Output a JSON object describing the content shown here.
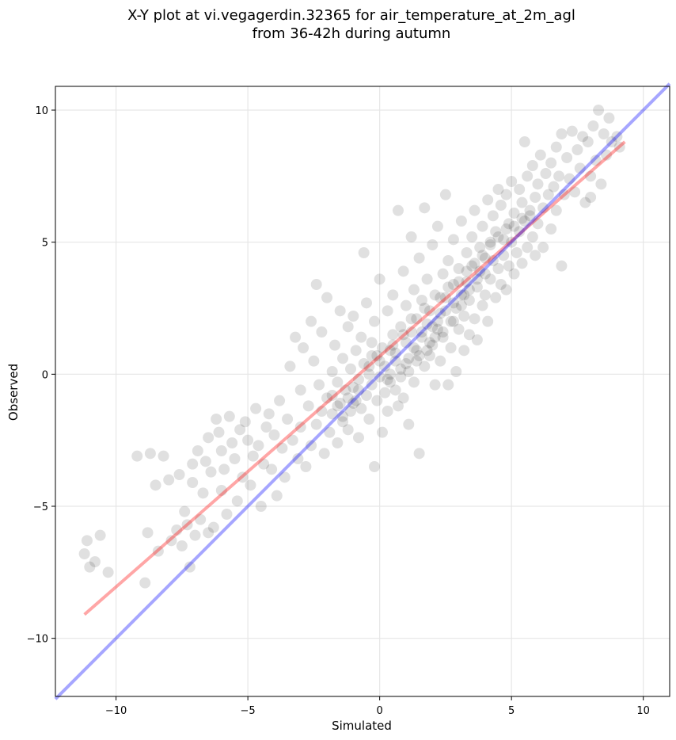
{
  "chart_data": {
    "type": "scatter",
    "title": "X-Y plot at vi.vegagerdin.32365 for air_temperature_at_2m_agl",
    "subtitle": "from 36-42h during autumn",
    "xlabel": "Simulated",
    "ylabel": "Observed",
    "xlim": [
      -12.3,
      11.0
    ],
    "ylim": [
      -12.2,
      10.9
    ],
    "xticks": [
      -10,
      -5,
      0,
      5,
      10
    ],
    "yticks": [
      -10,
      -5,
      0,
      5,
      10
    ],
    "grid": true,
    "point_color": "#000000",
    "points": [
      [
        -11.2,
        -6.8
      ],
      [
        -11.1,
        -6.3
      ],
      [
        -11.0,
        -7.3
      ],
      [
        -10.8,
        -7.1
      ],
      [
        -10.6,
        -6.1
      ],
      [
        -10.3,
        -7.5
      ],
      [
        -9.2,
        -3.1
      ],
      [
        -8.9,
        -7.9
      ],
      [
        -8.8,
        -6.0
      ],
      [
        -8.7,
        -3.0
      ],
      [
        -8.5,
        -4.2
      ],
      [
        -8.4,
        -6.7
      ],
      [
        -8.2,
        -3.1
      ],
      [
        -8.0,
        -4.0
      ],
      [
        -7.9,
        -6.3
      ],
      [
        -7.7,
        -5.9
      ],
      [
        -7.6,
        -3.8
      ],
      [
        -7.5,
        -6.5
      ],
      [
        -7.4,
        -5.2
      ],
      [
        -7.3,
        -5.7
      ],
      [
        -7.2,
        -7.3
      ],
      [
        -7.1,
        -3.4
      ],
      [
        -7.1,
        -4.1
      ],
      [
        -7.0,
        -6.1
      ],
      [
        -6.9,
        -2.9
      ],
      [
        -6.8,
        -5.5
      ],
      [
        -6.7,
        -4.5
      ],
      [
        -6.6,
        -3.3
      ],
      [
        -6.5,
        -6.0
      ],
      [
        -6.5,
        -2.4
      ],
      [
        -6.4,
        -3.7
      ],
      [
        -6.3,
        -5.8
      ],
      [
        -6.2,
        -1.7
      ],
      [
        -6.1,
        -2.2
      ],
      [
        -6.0,
        -4.4
      ],
      [
        -6.0,
        -2.9
      ],
      [
        -5.9,
        -3.6
      ],
      [
        -5.8,
        -5.3
      ],
      [
        -5.7,
        -1.6
      ],
      [
        -5.6,
        -2.6
      ],
      [
        -5.5,
        -3.2
      ],
      [
        -5.4,
        -4.8
      ],
      [
        -5.3,
        -2.1
      ],
      [
        -5.2,
        -3.9
      ],
      [
        -5.1,
        -1.8
      ],
      [
        -5.0,
        -2.5
      ],
      [
        -4.9,
        -4.2
      ],
      [
        -4.8,
        -3.1
      ],
      [
        -4.7,
        -1.3
      ],
      [
        -4.6,
        -2.7
      ],
      [
        -4.5,
        -5.0
      ],
      [
        -4.4,
        -3.4
      ],
      [
        -4.3,
        -2.0
      ],
      [
        -4.2,
        -1.5
      ],
      [
        -4.1,
        -3.6
      ],
      [
        -4.0,
        -2.3
      ],
      [
        -3.9,
        -4.6
      ],
      [
        -3.8,
        -1.0
      ],
      [
        -3.7,
        -2.8
      ],
      [
        -3.6,
        -3.9
      ],
      [
        -3.5,
        -1.7
      ],
      [
        -3.4,
        0.3
      ],
      [
        -3.3,
        -2.5
      ],
      [
        -3.2,
        1.4
      ],
      [
        -3.1,
        -3.2
      ],
      [
        -3.0,
        -0.6
      ],
      [
        -3.0,
        -2.0
      ],
      [
        -2.9,
        1.0
      ],
      [
        -2.8,
        -3.5
      ],
      [
        -2.7,
        -1.2
      ],
      [
        -2.6,
        2.0
      ],
      [
        -2.6,
        -2.7
      ],
      [
        -2.5,
        0.5
      ],
      [
        -2.4,
        3.4
      ],
      [
        -2.4,
        -1.9
      ],
      [
        -2.3,
        -0.4
      ],
      [
        -2.2,
        1.6
      ],
      [
        -2.1,
        -3.0
      ],
      [
        -2.0,
        -0.9
      ],
      [
        -2.0,
        2.9
      ],
      [
        -1.9,
        -2.2
      ],
      [
        -1.8,
        0.1
      ],
      [
        -1.8,
        -1.5
      ],
      [
        -1.7,
        1.1
      ],
      [
        -1.6,
        -0.3
      ],
      [
        -1.6,
        -2.6
      ],
      [
        -1.5,
        2.4
      ],
      [
        -1.5,
        -1.1
      ],
      [
        -1.4,
        0.6
      ],
      [
        -1.4,
        -1.8
      ],
      [
        -1.3,
        -0.6
      ],
      [
        -1.2,
        1.8
      ],
      [
        -1.2,
        -2.1
      ],
      [
        -1.1,
        0.2
      ],
      [
        -1.1,
        -1.4
      ],
      [
        -1.0,
        -0.5
      ],
      [
        -1.0,
        2.2
      ],
      [
        -0.9,
        -1.0
      ],
      [
        -0.9,
        0.9
      ],
      [
        -0.8,
        -2.4
      ],
      [
        -0.8,
        -0.2
      ],
      [
        -0.7,
        1.4
      ],
      [
        -0.7,
        -1.3
      ],
      [
        -0.6,
        4.6
      ],
      [
        -0.6,
        0.4
      ],
      [
        -0.5,
        -0.8
      ],
      [
        -0.5,
        2.7
      ],
      [
        -0.4,
        -1.7
      ],
      [
        -0.4,
        0.0
      ],
      [
        -0.3,
        1.2
      ],
      [
        -0.3,
        -0.4
      ],
      [
        -0.2,
        -3.5
      ],
      [
        -0.2,
        2.0
      ],
      [
        -0.1,
        -1.0
      ],
      [
        -0.1,
        0.7
      ],
      [
        0.0,
        -0.1
      ],
      [
        0.0,
        3.6
      ],
      [
        0.1,
        -2.2
      ],
      [
        0.1,
        1.0
      ],
      [
        0.2,
        0.3
      ],
      [
        0.2,
        -0.7
      ],
      [
        0.3,
        2.4
      ],
      [
        0.3,
        -1.4
      ],
      [
        0.4,
        0.9
      ],
      [
        0.4,
        -0.3
      ],
      [
        0.5,
        3.0
      ],
      [
        0.5,
        1.5
      ],
      [
        0.6,
        -0.6
      ],
      [
        0.6,
        0.5
      ],
      [
        0.7,
        6.2
      ],
      [
        0.7,
        -1.2
      ],
      [
        0.8,
        1.8
      ],
      [
        0.8,
        0.2
      ],
      [
        0.9,
        3.9
      ],
      [
        0.9,
        -0.9
      ],
      [
        1.0,
        1.2
      ],
      [
        1.0,
        2.6
      ],
      [
        1.1,
        0.6
      ],
      [
        1.1,
        -1.9
      ],
      [
        1.2,
        5.2
      ],
      [
        1.2,
        1.6
      ],
      [
        1.3,
        -0.3
      ],
      [
        1.3,
        3.2
      ],
      [
        1.4,
        0.9
      ],
      [
        1.4,
        2.1
      ],
      [
        1.5,
        4.4
      ],
      [
        1.5,
        -3.0
      ],
      [
        1.6,
        1.4
      ],
      [
        1.6,
        2.8
      ],
      [
        1.7,
        0.3
      ],
      [
        1.7,
        6.3
      ],
      [
        1.8,
        1.9
      ],
      [
        1.8,
        3.6
      ],
      [
        1.9,
        0.7
      ],
      [
        1.9,
        2.4
      ],
      [
        2.0,
        4.9
      ],
      [
        2.0,
        1.1
      ],
      [
        2.1,
        -0.4
      ],
      [
        2.1,
        3.0
      ],
      [
        2.2,
        1.7
      ],
      [
        2.2,
        5.6
      ],
      [
        2.3,
        2.3
      ],
      [
        2.3,
        0.5
      ],
      [
        2.4,
        3.8
      ],
      [
        2.4,
        1.4
      ],
      [
        2.5,
        6.8
      ],
      [
        2.5,
        2.9
      ],
      [
        2.6,
        -0.4
      ],
      [
        2.6,
        4.3
      ],
      [
        2.7,
        2.0
      ],
      [
        2.7,
        1.0
      ],
      [
        2.8,
        3.4
      ],
      [
        2.8,
        5.1
      ],
      [
        2.9,
        2.5
      ],
      [
        2.9,
        0.1
      ],
      [
        3.0,
        4.0
      ],
      [
        3.0,
        1.7
      ],
      [
        3.1,
        3.0
      ],
      [
        3.1,
        5.8
      ],
      [
        3.2,
        2.2
      ],
      [
        3.2,
        0.9
      ],
      [
        3.3,
        4.6
      ],
      [
        3.3,
        3.5
      ],
      [
        3.4,
        1.5
      ],
      [
        3.4,
        2.8
      ],
      [
        3.5,
        5.2
      ],
      [
        3.5,
        4.1
      ],
      [
        3.6,
        2.1
      ],
      [
        3.6,
        6.2
      ],
      [
        3.7,
        3.3
      ],
      [
        3.7,
        1.3
      ],
      [
        3.8,
        4.8
      ],
      [
        3.8,
        3.9
      ],
      [
        3.9,
        2.6
      ],
      [
        3.9,
        5.6
      ],
      [
        4.0,
        4.4
      ],
      [
        4.0,
        3.0
      ],
      [
        4.1,
        6.6
      ],
      [
        4.1,
        2.0
      ],
      [
        4.2,
        5.0
      ],
      [
        4.2,
        3.6
      ],
      [
        4.3,
        4.3
      ],
      [
        4.3,
        6.0
      ],
      [
        4.4,
        2.9
      ],
      [
        4.4,
        5.4
      ],
      [
        4.5,
        4.0
      ],
      [
        4.5,
        7.0
      ],
      [
        4.6,
        3.4
      ],
      [
        4.6,
        6.4
      ],
      [
        4.7,
        5.1
      ],
      [
        4.7,
        4.5
      ],
      [
        4.8,
        3.2
      ],
      [
        4.8,
        6.8
      ],
      [
        4.9,
        5.7
      ],
      [
        4.9,
        4.1
      ],
      [
        5.0,
        7.3
      ],
      [
        5.0,
        5.0
      ],
      [
        5.1,
        3.8
      ],
      [
        5.1,
        6.1
      ],
      [
        5.2,
        4.6
      ],
      [
        5.3,
        7.0
      ],
      [
        5.3,
        5.4
      ],
      [
        5.4,
        4.2
      ],
      [
        5.4,
        6.5
      ],
      [
        5.5,
        8.8
      ],
      [
        5.5,
        5.8
      ],
      [
        5.6,
        4.8
      ],
      [
        5.6,
        7.5
      ],
      [
        5.7,
        6.2
      ],
      [
        5.8,
        5.2
      ],
      [
        5.8,
        7.9
      ],
      [
        5.9,
        6.7
      ],
      [
        5.9,
        4.5
      ],
      [
        6.0,
        7.2
      ],
      [
        6.0,
        5.7
      ],
      [
        6.1,
        8.3
      ],
      [
        6.2,
        6.3
      ],
      [
        6.2,
        4.8
      ],
      [
        6.3,
        7.6
      ],
      [
        6.4,
        6.8
      ],
      [
        6.5,
        5.5
      ],
      [
        6.5,
        8.0
      ],
      [
        6.6,
        7.1
      ],
      [
        6.7,
        8.6
      ],
      [
        6.7,
        6.2
      ],
      [
        6.8,
        7.5
      ],
      [
        6.9,
        4.1
      ],
      [
        6.9,
        9.1
      ],
      [
        7.0,
        6.8
      ],
      [
        7.1,
        8.2
      ],
      [
        7.2,
        7.4
      ],
      [
        7.3,
        9.2
      ],
      [
        7.4,
        6.9
      ],
      [
        7.5,
        8.5
      ],
      [
        7.6,
        7.8
      ],
      [
        7.7,
        9.0
      ],
      [
        7.8,
        6.5
      ],
      [
        7.9,
        8.8
      ],
      [
        8.0,
        7.5
      ],
      [
        8.1,
        9.4
      ],
      [
        8.2,
        8.1
      ],
      [
        8.3,
        10.0
      ],
      [
        8.4,
        7.2
      ],
      [
        8.5,
        9.1
      ],
      [
        8.6,
        8.3
      ],
      [
        8.7,
        9.7
      ],
      [
        8.8,
        8.8
      ],
      [
        9.0,
        9.0
      ],
      [
        9.1,
        8.6
      ],
      [
        8.0,
        6.7
      ],
      [
        -0.4,
        0.3
      ],
      [
        0.0,
        0.5
      ],
      [
        0.3,
        -0.2
      ],
      [
        0.6,
        0.8
      ],
      [
        1.0,
        0.4
      ],
      [
        1.3,
        1.0
      ],
      [
        1.6,
        1.6
      ],
      [
        1.9,
        1.2
      ],
      [
        2.2,
        2.0
      ],
      [
        2.5,
        2.4
      ],
      [
        2.8,
        2.0
      ],
      [
        3.1,
        2.6
      ],
      [
        3.4,
        3.2
      ],
      [
        3.7,
        3.6
      ],
      [
        4.0,
        3.8
      ],
      [
        1.5,
        0.7
      ],
      [
        2.0,
        1.8
      ],
      [
        2.4,
        1.6
      ],
      [
        2.8,
        2.7
      ],
      [
        3.2,
        3.0
      ],
      [
        -1.6,
        -1.2
      ],
      [
        -1.2,
        -0.9
      ],
      [
        -0.8,
        -0.6
      ],
      [
        -0.3,
        0.7
      ],
      [
        0.5,
        1.1
      ],
      [
        0.9,
        1.5
      ],
      [
        1.2,
        2.1
      ],
      [
        1.7,
        2.5
      ],
      [
        2.3,
        2.9
      ],
      [
        2.6,
        3.3
      ],
      [
        -2.2,
        -1.4
      ],
      [
        -1.8,
        -0.8
      ],
      [
        -1.4,
        -1.6
      ],
      [
        -1.0,
        -1.1
      ],
      [
        0.4,
        0.0
      ],
      [
        0.8,
        -0.1
      ],
      [
        1.1,
        0.1
      ],
      [
        1.4,
        0.5
      ],
      [
        1.8,
        0.9
      ],
      [
        2.1,
        1.4
      ],
      [
        3.0,
        3.5
      ],
      [
        3.3,
        3.9
      ],
      [
        3.6,
        4.2
      ],
      [
        3.9,
        4.5
      ],
      [
        4.2,
        4.9
      ],
      [
        4.5,
        5.2
      ],
      [
        4.8,
        5.5
      ],
      [
        5.1,
        5.6
      ],
      [
        5.4,
        5.9
      ],
      [
        5.7,
        6.0
      ]
    ],
    "lines": [
      {
        "color": "#ff0000",
        "x": [
          -11.2,
          9.3
        ],
        "y": [
          -9.1,
          8.8
        ]
      },
      {
        "color": "#0000ff",
        "x": [
          -12.3,
          11.0
        ],
        "y": [
          -12.3,
          11.0
        ]
      }
    ]
  }
}
